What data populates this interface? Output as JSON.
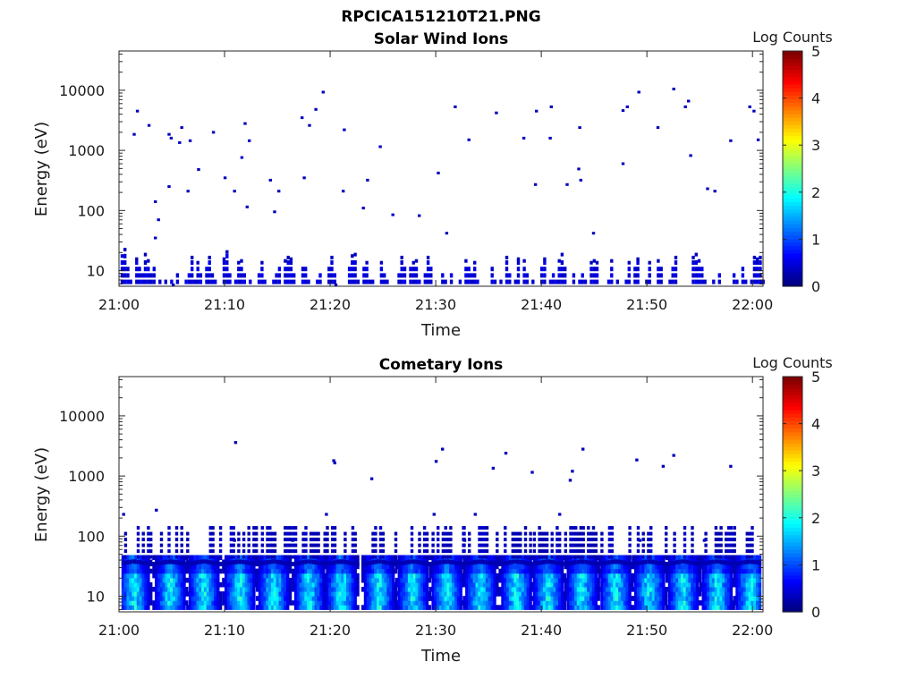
{
  "figure": {
    "title": "RPCICA151210T21.PNG"
  },
  "chart_data": [
    {
      "type": "heatmap",
      "title": "Solar Wind Ions",
      "xlabel": "Time",
      "ylabel": "Energy (eV)",
      "y_scale": "log",
      "ylim": [
        5.5,
        45000
      ],
      "x_ticks": [
        "21:00",
        "21:10",
        "21:20",
        "21:30",
        "21:40",
        "21:50",
        "22:00"
      ],
      "x_range_minutes": [
        0,
        61
      ],
      "y_ticks": [
        "10",
        "100",
        "1000",
        "10000"
      ],
      "colorbar": {
        "label": "Log Counts",
        "min": 0,
        "max": 5,
        "ticks": [
          "0",
          "1",
          "2",
          "3",
          "4",
          "5"
        ],
        "colormap": "jet"
      },
      "cells": [
        {
          "t": 1.3,
          "e": 1850,
          "c": 0.3
        },
        {
          "t": 1.6,
          "e": 4500,
          "c": 0.3
        },
        {
          "t": 2.7,
          "e": 2600,
          "c": 0.3
        },
        {
          "t": 3.3,
          "e": 140,
          "c": 0.3
        },
        {
          "t": 3.6,
          "e": 70,
          "c": 0.3
        },
        {
          "t": 3.3,
          "e": 35,
          "c": 0.3
        },
        {
          "t": 4.6,
          "e": 1850,
          "c": 0.3
        },
        {
          "t": 4.8,
          "e": 1600,
          "c": 0.3
        },
        {
          "t": 4.6,
          "e": 250,
          "c": 0.3
        },
        {
          "t": 5.6,
          "e": 1350,
          "c": 0.3
        },
        {
          "t": 5.8,
          "e": 2400,
          "c": 0.3
        },
        {
          "t": 6.4,
          "e": 210,
          "c": 0.3
        },
        {
          "t": 6.6,
          "e": 1450,
          "c": 0.3
        },
        {
          "t": 7.4,
          "e": 480,
          "c": 0.3
        },
        {
          "t": 8.8,
          "e": 2000,
          "c": 0.3
        },
        {
          "t": 9.9,
          "e": 350,
          "c": 0.3
        },
        {
          "t": 10.8,
          "e": 210,
          "c": 0.3
        },
        {
          "t": 11.5,
          "e": 760,
          "c": 0.4
        },
        {
          "t": 11.8,
          "e": 2800,
          "c": 0.3
        },
        {
          "t": 12.2,
          "e": 1450,
          "c": 0.3
        },
        {
          "t": 12.0,
          "e": 115,
          "c": 0.3
        },
        {
          "t": 14.2,
          "e": 320,
          "c": 0.3
        },
        {
          "t": 14.6,
          "e": 95,
          "c": 0.3
        },
        {
          "t": 15.0,
          "e": 210,
          "c": 0.3
        },
        {
          "t": 17.2,
          "e": 3500,
          "c": 0.3
        },
        {
          "t": 17.4,
          "e": 350,
          "c": 0.3
        },
        {
          "t": 17.9,
          "e": 2600,
          "c": 0.3
        },
        {
          "t": 18.5,
          "e": 4800,
          "c": 0.3
        },
        {
          "t": 19.2,
          "e": 9300,
          "c": 0.3
        },
        {
          "t": 21.2,
          "e": 2200,
          "c": 0.3
        },
        {
          "t": 21.1,
          "e": 210,
          "c": 0.3
        },
        {
          "t": 23.0,
          "e": 110,
          "c": 0.3
        },
        {
          "t": 23.4,
          "e": 320,
          "c": 0.3
        },
        {
          "t": 24.6,
          "e": 1150,
          "c": 0.3
        },
        {
          "t": 25.8,
          "e": 85,
          "c": 0.4
        },
        {
          "t": 28.3,
          "e": 82,
          "c": 0.3
        },
        {
          "t": 30.1,
          "e": 420,
          "c": 0.3
        },
        {
          "t": 30.9,
          "e": 42,
          "c": 0.3
        },
        {
          "t": 31.7,
          "e": 5300,
          "c": 0.3
        },
        {
          "t": 33.0,
          "e": 1500,
          "c": 0.3
        },
        {
          "t": 35.6,
          "e": 4200,
          "c": 0.3
        },
        {
          "t": 38.2,
          "e": 1600,
          "c": 0.3
        },
        {
          "t": 39.4,
          "e": 4500,
          "c": 0.3
        },
        {
          "t": 39.3,
          "e": 270,
          "c": 0.3
        },
        {
          "t": 40.7,
          "e": 1600,
          "c": 0.3
        },
        {
          "t": 40.8,
          "e": 5300,
          "c": 0.3
        },
        {
          "t": 42.3,
          "e": 270,
          "c": 0.3
        },
        {
          "t": 43.5,
          "e": 2400,
          "c": 0.3
        },
        {
          "t": 43.4,
          "e": 490,
          "c": 0.3
        },
        {
          "t": 43.6,
          "e": 320,
          "c": 0.3
        },
        {
          "t": 44.8,
          "e": 42,
          "c": 0.3
        },
        {
          "t": 47.6,
          "e": 600,
          "c": 0.3
        },
        {
          "t": 47.6,
          "e": 4600,
          "c": 0.3
        },
        {
          "t": 48.0,
          "e": 5300,
          "c": 0.3
        },
        {
          "t": 49.1,
          "e": 9300,
          "c": 0.3
        },
        {
          "t": 50.9,
          "e": 2400,
          "c": 0.3
        },
        {
          "t": 52.4,
          "e": 10500,
          "c": 0.3
        },
        {
          "t": 53.5,
          "e": 5300,
          "c": 0.3
        },
        {
          "t": 53.8,
          "e": 6600,
          "c": 0.3
        },
        {
          "t": 54.0,
          "e": 820,
          "c": 0.3
        },
        {
          "t": 55.6,
          "e": 230,
          "c": 0.3
        },
        {
          "t": 56.3,
          "e": 210,
          "c": 0.3
        },
        {
          "t": 57.8,
          "e": 1450,
          "c": 0.3
        },
        {
          "t": 59.6,
          "e": 5300,
          "c": 0.3
        },
        {
          "t": 60.0,
          "e": 4500,
          "c": 0.3
        },
        {
          "t": 60.4,
          "e": 1500,
          "c": 0.3
        },
        {
          "t": 5.0,
          "e": 5.8,
          "c": 0.3
        },
        {
          "t": 20.4,
          "e": 5.8,
          "c": 0.3
        }
      ],
      "low_energy_activity": [
        0.55,
        0.8,
        0.3,
        0.1,
        0.05,
        0.45,
        0.3,
        0.15,
        0.6,
        0.4,
        0.2,
        0.3,
        0.05,
        0.1,
        0.05,
        0.1,
        0.0,
        0.1,
        0.0,
        0.2,
        0.05,
        0.05,
        0.1,
        0.2,
        0.5,
        0.1,
        0.35,
        0.15,
        0.0,
        0.3,
        0.5,
        0.15,
        0.1,
        0.05,
        0.0,
        0.45,
        0.7,
        0.2,
        0.0,
        0.1,
        0.35,
        0.4,
        0.15,
        0.05,
        0.1,
        0.0,
        0.05,
        0.15,
        0.35,
        0.1,
        0.05,
        0.0,
        0.1,
        0.2,
        0.3,
        0.0,
        0.4,
        0.5,
        0.45,
        0.2,
        0.0,
        0.05,
        0.3,
        0.3,
        0.1,
        0.0,
        0.0,
        0.1,
        0.2,
        0.0,
        0.05,
        0.3,
        0.5,
        0.2,
        0.05,
        0.0,
        0.05,
        0.0,
        0.3,
        0.55,
        0.6,
        0.1,
        0.05,
        0.3,
        0.35,
        0.1,
        0.1,
        0.0,
        0.0,
        0.35,
        0.2,
        0.1,
        0.05,
        0.0,
        0.0,
        0.2,
        0.5,
        0.3,
        0.05,
        0.3,
        0.35,
        0.4,
        0.1,
        0.05,
        0.2,
        0.5,
        0.3,
        0.05,
        0.0,
        0.0,
        0.2,
        0.1,
        0.05,
        0.25,
        0.05,
        0.0,
        0.1,
        0.05,
        0.4,
        0.3,
        0.2,
        0.35,
        0.1,
        0.0,
        0.05,
        0.0,
        0.0,
        0.3,
        0.1,
        0.0,
        0.1,
        0.0,
        0.5,
        0.2,
        0.05,
        0.1,
        0.45,
        0.05,
        0.4,
        0.2,
        0.0,
        0.1,
        0.05,
        0.0,
        0.3,
        0.45,
        0.05,
        0.1,
        0.25,
        0.1,
        0.4,
        0.6,
        0.3,
        0.0,
        0.05,
        0.2,
        0.0,
        0.1,
        0.15,
        0.1,
        0.0,
        0.35,
        0.4,
        0.35,
        0.05,
        0.0,
        0.0,
        0.1,
        0.4,
        0.0,
        0.1,
        0.0,
        0.0,
        0.1,
        0.35,
        0.05,
        0.3,
        0.45,
        0.0,
        0.05,
        0.1,
        0.35,
        0.05,
        0.0,
        0.4,
        0.3,
        0.0,
        0.0,
        0.1,
        0.3,
        0.5,
        0.05,
        0.0,
        0.0,
        0.05,
        0.0,
        0.5,
        0.6,
        0.4,
        0.3,
        0.1,
        0.0,
        0.0,
        0.1,
        0.05,
        0.2,
        0.0,
        0.0,
        0.0,
        0.05,
        0.15,
        0.1,
        0.0,
        0.3,
        0.1,
        0.0,
        0.1,
        0.5,
        0.45,
        0.5,
        0.1
      ]
    },
    {
      "type": "heatmap",
      "title": "Cometary Ions",
      "xlabel": "Time",
      "ylabel": "Energy (eV)",
      "y_scale": "log",
      "ylim": [
        5.5,
        45000
      ],
      "x_ticks": [
        "21:00",
        "21:10",
        "21:20",
        "21:30",
        "21:40",
        "21:50",
        "22:00"
      ],
      "x_range_minutes": [
        0,
        61
      ],
      "y_ticks": [
        "10",
        "100",
        "1000",
        "10000"
      ],
      "colorbar": {
        "label": "Log Counts",
        "min": 0,
        "max": 5,
        "ticks": [
          "0",
          "1",
          "2",
          "3",
          "4",
          "5"
        ],
        "colormap": "jet"
      },
      "burst_centers_minutes": [
        1.2,
        4.6,
        7.8,
        11.2,
        14.4,
        17.8,
        20.8,
        24.4,
        27.6,
        30.8,
        34.0,
        37.4,
        40.4,
        43.6,
        46.8,
        50.0,
        53.2,
        56.4,
        59.6
      ],
      "scattered_cells": [
        {
          "t": 10.9,
          "e": 3600,
          "c": 0.3
        },
        {
          "t": 20.2,
          "e": 1800,
          "c": 0.3
        },
        {
          "t": 20.3,
          "e": 1650,
          "c": 0.3
        },
        {
          "t": 23.8,
          "e": 900,
          "c": 0.3
        },
        {
          "t": 29.9,
          "e": 1750,
          "c": 0.3
        },
        {
          "t": 30.5,
          "e": 2800,
          "c": 0.3
        },
        {
          "t": 35.3,
          "e": 1350,
          "c": 0.3
        },
        {
          "t": 36.5,
          "e": 2400,
          "c": 0.3
        },
        {
          "t": 39.0,
          "e": 1150,
          "c": 0.3
        },
        {
          "t": 42.6,
          "e": 850,
          "c": 0.3
        },
        {
          "t": 42.8,
          "e": 1200,
          "c": 0.3
        },
        {
          "t": 43.8,
          "e": 2800,
          "c": 0.3
        },
        {
          "t": 48.9,
          "e": 1850,
          "c": 0.3
        },
        {
          "t": 51.4,
          "e": 1450,
          "c": 0.3
        },
        {
          "t": 52.4,
          "e": 2200,
          "c": 0.3
        },
        {
          "t": 57.8,
          "e": 1450,
          "c": 0.3
        },
        {
          "t": 0.3,
          "e": 230,
          "c": 0.3
        },
        {
          "t": 3.4,
          "e": 270,
          "c": 0.3
        },
        {
          "t": 19.5,
          "e": 230,
          "c": 0.3
        },
        {
          "t": 29.7,
          "e": 230,
          "c": 0.3
        },
        {
          "t": 33.6,
          "e": 230,
          "c": 0.3
        },
        {
          "t": 41.6,
          "e": 230,
          "c": 0.3
        },
        {
          "t": 10.8,
          "e": 85,
          "c": 0.3
        },
        {
          "t": 16.3,
          "e": 85,
          "c": 0.3
        },
        {
          "t": 32.6,
          "e": 85,
          "c": 0.3
        },
        {
          "t": 49.2,
          "e": 85,
          "c": 0.3
        },
        {
          "t": 55.3,
          "e": 85,
          "c": 0.3
        }
      ]
    }
  ]
}
